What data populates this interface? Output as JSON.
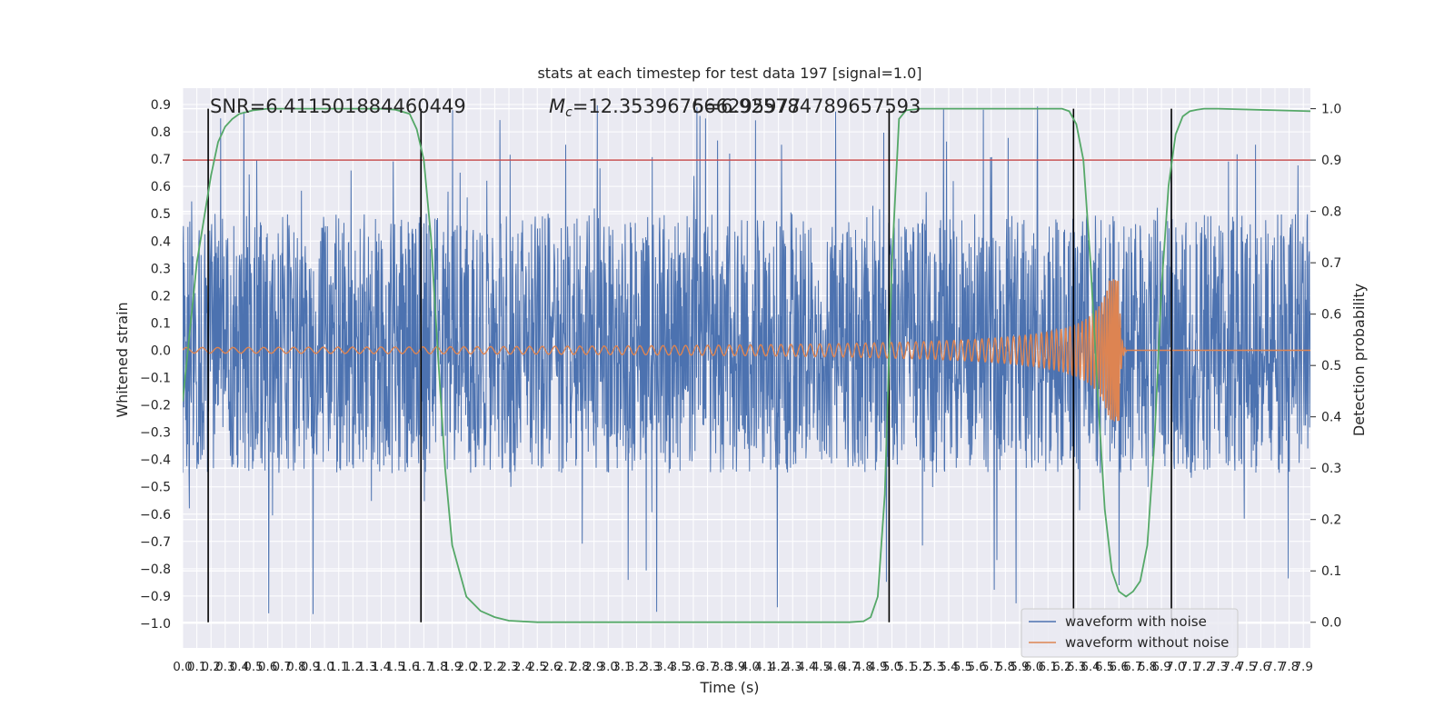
{
  "chart_data": {
    "type": "line",
    "title": "stats at each timestep for test data 197 [signal=1.0]",
    "xlabel": "Time (s)",
    "ylabel": "Whitened strain",
    "ylabel_right": "Detection probability",
    "xlim": [
      0.0,
      7.95
    ],
    "ylim": [
      -1.09,
      0.96
    ],
    "ylim_right": [
      -0.05,
      1.04
    ],
    "x_ticks": [
      "0.0",
      "0.1",
      "0.2",
      "0.3",
      "0.4",
      "0.5",
      "0.6",
      "0.7",
      "0.8",
      "0.9",
      "1.0",
      "1.1",
      "1.2",
      "1.3",
      "1.4",
      "1.5",
      "1.6",
      "1.7",
      "1.8",
      "1.9",
      "2.0",
      "2.1",
      "2.2",
      "2.3",
      "2.4",
      "2.5",
      "2.6",
      "2.7",
      "2.8",
      "2.9",
      "3.0",
      "3.1",
      "3.2",
      "3.3",
      "3.4",
      "3.5",
      "3.6",
      "3.7",
      "3.8",
      "3.9",
      "4.0",
      "4.1",
      "4.2",
      "4.3",
      "4.4",
      "4.5",
      "4.6",
      "4.7",
      "4.8",
      "4.9",
      "5.0",
      "5.1",
      "5.2",
      "5.3",
      "5.4",
      "5.5",
      "5.6",
      "5.7",
      "5.8",
      "5.9",
      "6.0",
      "6.1",
      "6.2",
      "6.3",
      "6.4",
      "6.5",
      "6.6",
      "6.7",
      "6.8",
      "6.9",
      "7.0",
      "7.1",
      "7.2",
      "7.3",
      "7.4",
      "7.5",
      "7.6",
      "7.7",
      "7.8",
      "7.9"
    ],
    "y_ticks": [
      "−1.0",
      "−0.9",
      "−0.8",
      "−0.7",
      "−0.6",
      "−0.5",
      "−0.4",
      "−0.3",
      "−0.2",
      "−0.1",
      "0.0",
      "0.1",
      "0.2",
      "0.3",
      "0.4",
      "0.5",
      "0.6",
      "0.7",
      "0.8",
      "0.9"
    ],
    "y_ticks_right": [
      "0.0",
      "0.1",
      "0.2",
      "0.3",
      "0.4",
      "0.5",
      "0.6",
      "0.7",
      "0.8",
      "0.9",
      "1.0"
    ],
    "annotations": {
      "snr": "SNR=6.411501884460449",
      "mc_symbol": "M",
      "mc_subscript": "c",
      "mc_value": "=12.353967666295977",
      "overlap_text": "5=6.925784789657593"
    },
    "threshold_right": 0.9,
    "vertical_lines_x": [
      0.18,
      1.68,
      4.98,
      6.28,
      6.97
    ],
    "noise_envelope": {
      "typical_max": 0.5,
      "typical_min": -0.45,
      "peak_max": 0.9,
      "peak_min": -1.0
    },
    "chirp": {
      "start_x": 0.0,
      "merger_x": 6.6,
      "end_x": 7.95,
      "peak_amplitude": 0.26,
      "start_amplitude": 0.01
    },
    "series": [
      {
        "name": "waveform with noise",
        "color": "#4c72b0",
        "axis": "left"
      },
      {
        "name": "waveform without noise",
        "color": "#dd8452",
        "axis": "left"
      },
      {
        "name": "detection probability",
        "color": "#55a868",
        "axis": "right",
        "x": [
          0.0,
          0.1,
          0.2,
          0.25,
          0.3,
          0.35,
          0.4,
          0.5,
          0.6,
          1.4,
          1.5,
          1.6,
          1.65,
          1.7,
          1.75,
          1.8,
          1.85,
          1.9,
          2.0,
          2.1,
          2.2,
          2.3,
          2.5,
          4.7,
          4.8,
          4.85,
          4.9,
          4.95,
          5.0,
          5.05,
          5.1,
          5.2,
          6.2,
          6.25,
          6.3,
          6.35,
          6.4,
          6.45,
          6.5,
          6.55,
          6.6,
          6.65,
          6.7,
          6.75,
          6.8,
          6.85,
          6.9,
          6.95,
          7.0,
          7.05,
          7.1,
          7.15,
          7.2,
          7.3,
          7.95
        ],
        "y": [
          0.43,
          0.7,
          0.87,
          0.935,
          0.965,
          0.98,
          0.99,
          0.997,
          1.0,
          1.0,
          0.998,
          0.99,
          0.96,
          0.9,
          0.75,
          0.52,
          0.3,
          0.15,
          0.05,
          0.022,
          0.01,
          0.003,
          0.0,
          0.0,
          0.002,
          0.01,
          0.05,
          0.25,
          0.7,
          0.98,
          0.997,
          1.0,
          1.0,
          0.995,
          0.97,
          0.9,
          0.7,
          0.45,
          0.22,
          0.1,
          0.06,
          0.05,
          0.06,
          0.08,
          0.15,
          0.35,
          0.65,
          0.85,
          0.95,
          0.985,
          0.995,
          0.998,
          1.0,
          1.0,
          0.995
        ]
      }
    ],
    "legend_position": "lower-right",
    "grid": true
  },
  "colors": {
    "axes_bg": "#eaeaf2",
    "grid": "#ffffff",
    "threshold": "#c44e52",
    "vline": "#000000",
    "text": "#262626"
  }
}
